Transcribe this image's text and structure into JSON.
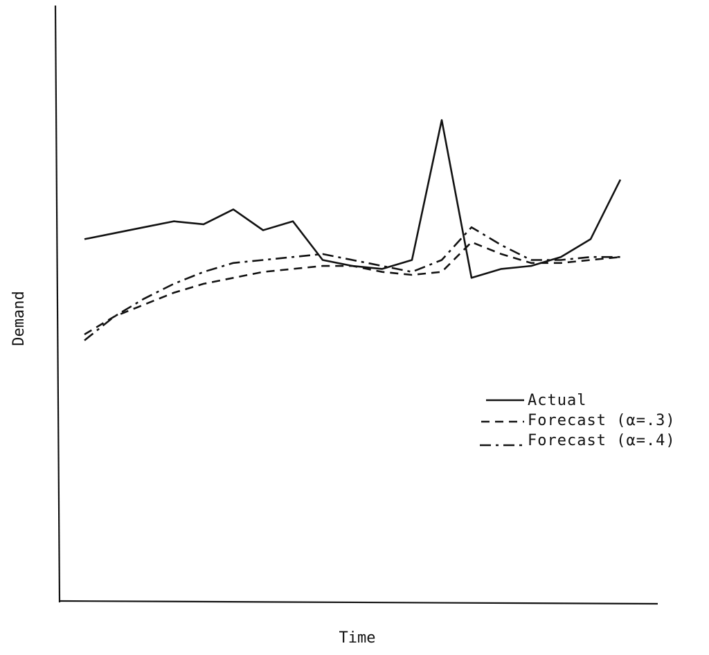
{
  "chart_data": {
    "type": "line",
    "xlabel": "Time",
    "ylabel": "Demand",
    "x": [
      1,
      2,
      3,
      4,
      5,
      6,
      7,
      8,
      9,
      10,
      11,
      12,
      13,
      14,
      15,
      16,
      17,
      18,
      19
    ],
    "series": [
      {
        "name": "Actual",
        "style": "solid",
        "values": [
          61,
          62,
          63,
          64,
          63.5,
          66,
          62.5,
          64,
          57.5,
          56.5,
          56,
          57.5,
          81,
          54.5,
          56,
          56.5,
          58,
          61,
          71
        ]
      },
      {
        "name": "Forecast (α=.3)",
        "style": "dashed",
        "values": [
          45,
          48,
          50,
          52,
          53.5,
          54.5,
          55.5,
          56,
          56.5,
          56.5,
          55.5,
          55,
          55.5,
          60.5,
          58.5,
          57,
          57,
          57.5,
          58
        ]
      },
      {
        "name": "Forecast (α=.4)",
        "style": "dash-dot",
        "values": [
          44,
          48,
          51,
          53.5,
          55.5,
          57,
          57.5,
          58,
          58.5,
          57.5,
          56.5,
          55.5,
          57.5,
          63,
          60,
          57.5,
          57.5,
          58,
          58
        ]
      }
    ],
    "ylim": [
      0,
      100
    ],
    "grid": false,
    "legend_position": "right"
  }
}
